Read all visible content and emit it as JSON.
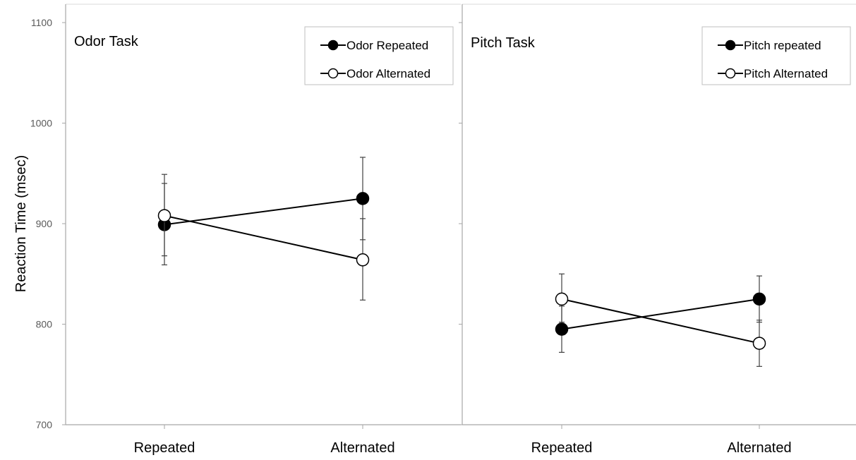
{
  "chart_data": {
    "type": "line",
    "ylabel": "Reaction Time (msec)",
    "ylim": [
      700,
      1100
    ],
    "yticks": [
      "700",
      "800",
      "900",
      "1000",
      "1100"
    ],
    "categories": [
      "Repeated",
      "Alternated"
    ],
    "error_bars": true,
    "panels": [
      {
        "title": "Odor Task",
        "legend_position": "top-right",
        "series": [
          {
            "name": "Odor Repeated",
            "marker": "filled",
            "values": [
              899,
              925
            ],
            "error_low": [
              859,
              884
            ],
            "error_high": [
              940,
              966
            ]
          },
          {
            "name": "Odor Alternated",
            "marker": "open",
            "values": [
              908,
              864
            ],
            "error_low": [
              868,
              824
            ],
            "error_high": [
              949,
              905
            ]
          }
        ]
      },
      {
        "title": "Pitch Task",
        "legend_position": "top-right",
        "series": [
          {
            "name": "Pitch repeated",
            "marker": "filled",
            "values": [
              795,
              825
            ],
            "error_low": [
              772,
              802
            ],
            "error_high": [
              818,
              848
            ]
          },
          {
            "name": "Pitch Alternated",
            "marker": "open",
            "values": [
              825,
              781
            ],
            "error_low": [
              802,
              758
            ],
            "error_high": [
              850,
              804
            ]
          }
        ]
      }
    ]
  },
  "colors": {
    "line": "#000000",
    "axis": "#a6a6a6",
    "errbar": "#404040"
  }
}
